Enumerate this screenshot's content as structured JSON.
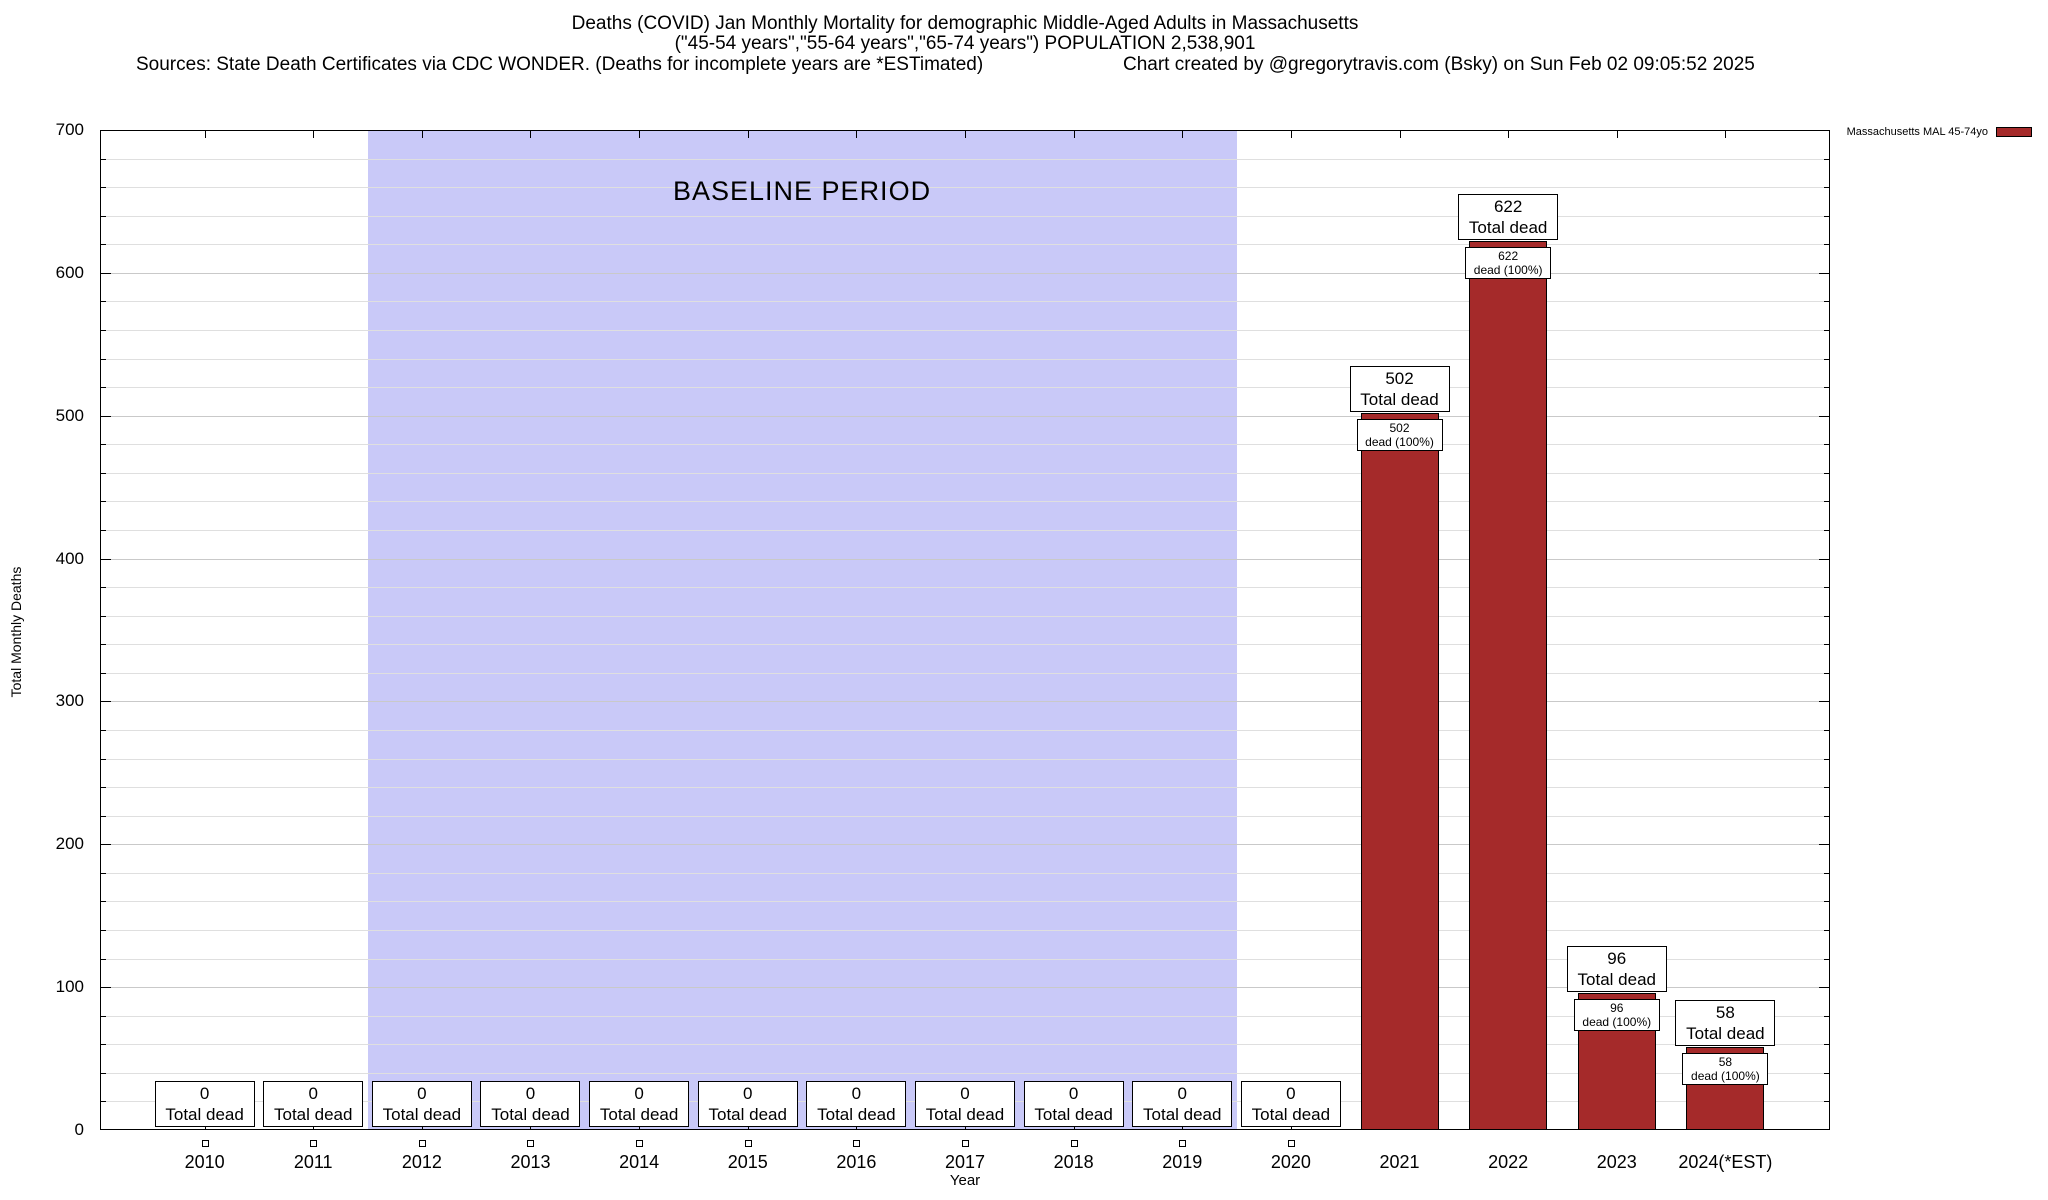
{
  "header": {
    "title": "Deaths (COVID) Jan Monthly Mortality for demographic Middle-Aged Adults in Massachusetts",
    "subtitle": "(\"45-54 years\",\"55-64 years\",\"65-74 years\") POPULATION 2,538,901",
    "sources": "Sources: State Death Certificates via CDC WONDER. (Deaths for incomplete years are *ESTimated)",
    "credit": "Chart created by @gregorytravis.com (Bsky) on Sun Feb 02 09:05:52 2025"
  },
  "chart_data": {
    "type": "bar",
    "title": "Deaths (COVID) Jan Monthly Mortality for demographic Middle-Aged Adults in Massachusetts",
    "series_name": "Massachusetts MAL 45-74yo",
    "categories": [
      "2010",
      "2011",
      "2012",
      "2013",
      "2014",
      "2015",
      "2016",
      "2017",
      "2018",
      "2019",
      "2020",
      "2021",
      "2022",
      "2023",
      "2024(*EST)"
    ],
    "values": [
      0,
      0,
      0,
      0,
      0,
      0,
      0,
      0,
      0,
      0,
      0,
      502,
      622,
      96,
      58
    ],
    "bar_color": "#a52a2a",
    "xlabel": "Year",
    "ylabel": "Total Monthly Deaths",
    "ylim": [
      0,
      700
    ],
    "y_major_step": 100,
    "y_minor_step": 20,
    "grid": true,
    "legend_position": "top-right",
    "labels": {
      "total_box_suffix": "Total dead",
      "in_bar_suffix": "dead (100%)"
    },
    "baseline_region": {
      "label": "BASELINE PERIOD",
      "from": "2012",
      "to": "2019",
      "color": "#c9c9f8"
    }
  }
}
